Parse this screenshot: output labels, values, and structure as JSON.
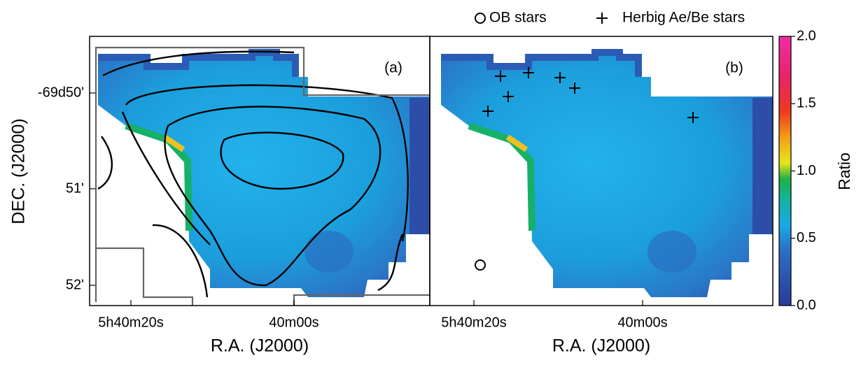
{
  "legend": [
    "OB stars",
    "Herbig Ae/Be stars"
  ],
  "ylabel": "DEC. (J2000)",
  "yticks": [
    "-69d50'",
    "51'",
    "52'"
  ],
  "panels": [
    {
      "label": "(a)",
      "xlabel": "R.A. (J2000)",
      "xticks": [
        "5h40m20s",
        "40m00s"
      ]
    },
    {
      "label": "(b)",
      "xlabel": "R.A. (J2000)",
      "xticks": [
        "5h40m20s",
        "40m00s"
      ]
    }
  ],
  "colorbar": {
    "label": "Ratio",
    "lim": [
      0,
      2
    ],
    "ticks": [
      {
        "value": 0,
        "label": "0.0"
      },
      {
        "value": 0.5,
        "label": "0.5"
      },
      {
        "value": 1,
        "label": "1.0"
      },
      {
        "value": 1.5,
        "label": "1.5"
      },
      {
        "value": 2,
        "label": "2.0"
      }
    ]
  }
}
